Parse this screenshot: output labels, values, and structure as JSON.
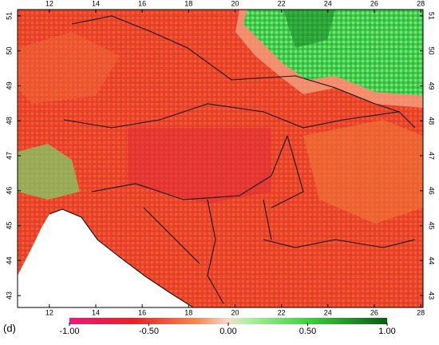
{
  "map": {
    "xlim": [
      10.63,
      28.1
    ],
    "ylim": [
      42.66,
      51.18
    ],
    "xticks": [
      12,
      14,
      16,
      18,
      20,
      22,
      24,
      26,
      28
    ],
    "yticks": [
      43,
      44,
      45,
      46,
      47,
      48,
      49,
      50,
      51
    ]
  },
  "colorbar": {
    "lim": [
      -1,
      1
    ],
    "ticks": [
      {
        "value": -1,
        "label": "-1.00"
      },
      {
        "value": -0.5,
        "label": "-0.50"
      },
      {
        "value": 0,
        "label": "0.00"
      },
      {
        "value": 0.5,
        "label": "0.50"
      },
      {
        "value": 1,
        "label": "1.00"
      }
    ]
  },
  "panel_label": "(d)"
}
